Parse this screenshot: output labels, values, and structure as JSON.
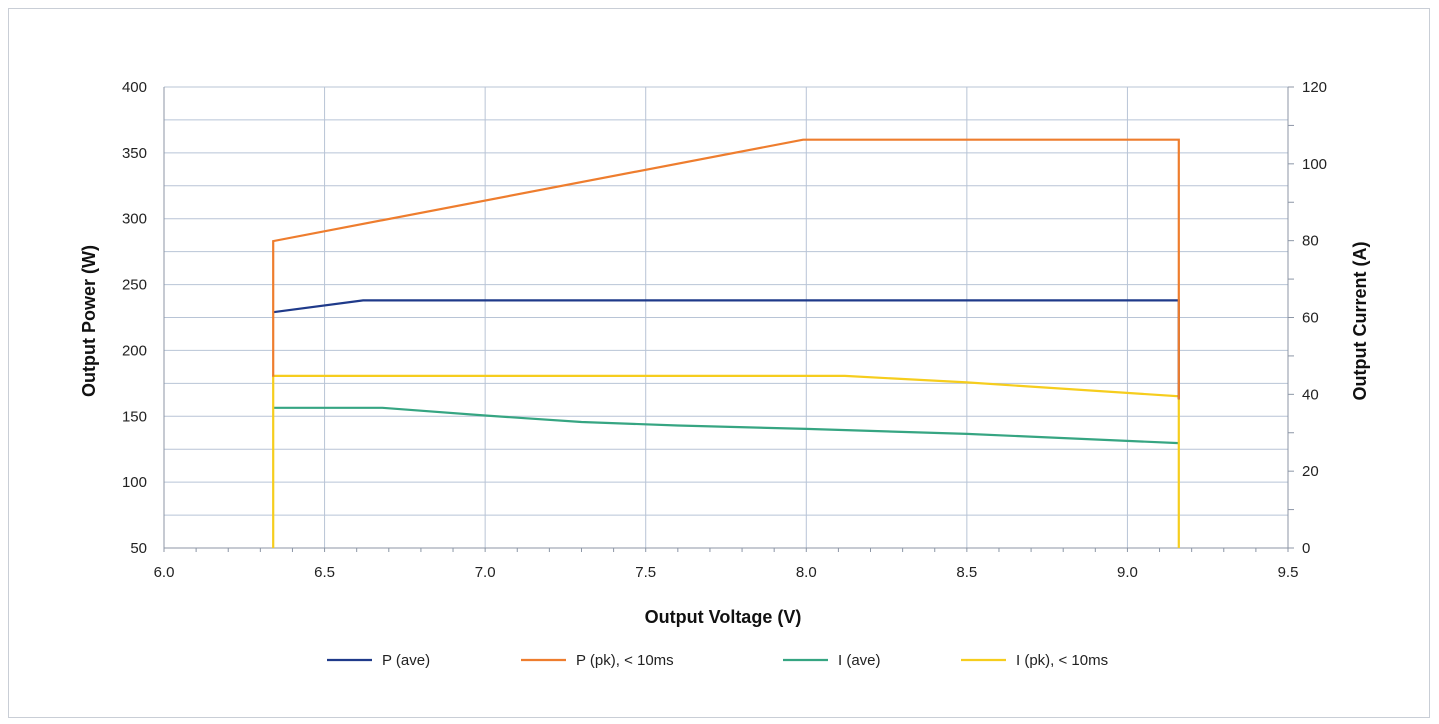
{
  "chart_data": {
    "type": "line",
    "title": "",
    "xlabel": "Output Voltage (V)",
    "ylabel_left": "Output Power (W)",
    "ylabel_right": "Output Current (A)",
    "xlim": [
      6.0,
      9.5
    ],
    "ylim_left": [
      50,
      400
    ],
    "ylim_right": [
      0,
      120
    ],
    "x_ticks": [
      "6.0",
      "6.5",
      "7.0",
      "7.5",
      "8.0",
      "8.5",
      "9.0",
      "9.5"
    ],
    "y_left_ticks": [
      "400",
      "350",
      "300",
      "250",
      "200",
      "150",
      "100",
      "50"
    ],
    "y_right_ticks": [
      "120",
      "100",
      "80",
      "60",
      "40",
      "20",
      "0"
    ],
    "grid": true,
    "legend_position": "bottom",
    "series": [
      {
        "name": "P (ave)",
        "axis": "left",
        "color": "#1f3a8a",
        "points": [
          [
            6.34,
            229
          ],
          [
            6.62,
            238
          ],
          [
            9.16,
            238
          ],
          [
            9.16,
            163
          ]
        ]
      },
      {
        "name": "P (pk), < 10ms",
        "axis": "left",
        "color": "#ee7d2e",
        "points": [
          [
            6.34,
            180
          ],
          [
            6.34,
            283
          ],
          [
            7.99,
            360
          ],
          [
            9.16,
            360
          ],
          [
            9.16,
            163
          ]
        ]
      },
      {
        "name": "I (ave)",
        "axis": "right",
        "color": "#36a582",
        "points": [
          [
            6.34,
            36.5
          ],
          [
            6.68,
            36.5
          ],
          [
            7.0,
            34.5
          ],
          [
            7.3,
            32.8
          ],
          [
            7.6,
            31.9
          ],
          [
            8.0,
            31.0
          ],
          [
            8.5,
            29.7
          ],
          [
            9.16,
            27.3
          ]
        ]
      },
      {
        "name": "I (pk), < 10ms",
        "axis": "right",
        "color": "#f6cd1d",
        "points": [
          [
            6.34,
            0
          ],
          [
            6.34,
            44.8
          ],
          [
            8.12,
            44.8
          ],
          [
            8.5,
            43.1
          ],
          [
            9.16,
            39.5
          ],
          [
            9.16,
            0
          ]
        ]
      }
    ]
  }
}
